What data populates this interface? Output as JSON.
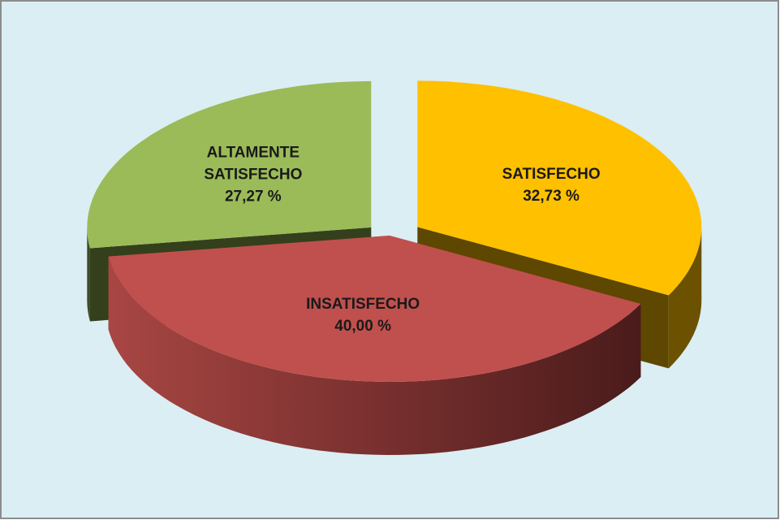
{
  "chart_data": {
    "type": "pie",
    "categories": [
      "SATISFECHO",
      "INSATISFECHO",
      "ALTAMENTE SATISFECHO"
    ],
    "values": [
      32.73,
      40.0,
      27.27
    ],
    "value_labels": [
      "32,73 %",
      "40,00 %",
      "27,27 %"
    ],
    "colors": [
      "#ffc000",
      "#c0504d",
      "#9bbb59"
    ]
  }
}
